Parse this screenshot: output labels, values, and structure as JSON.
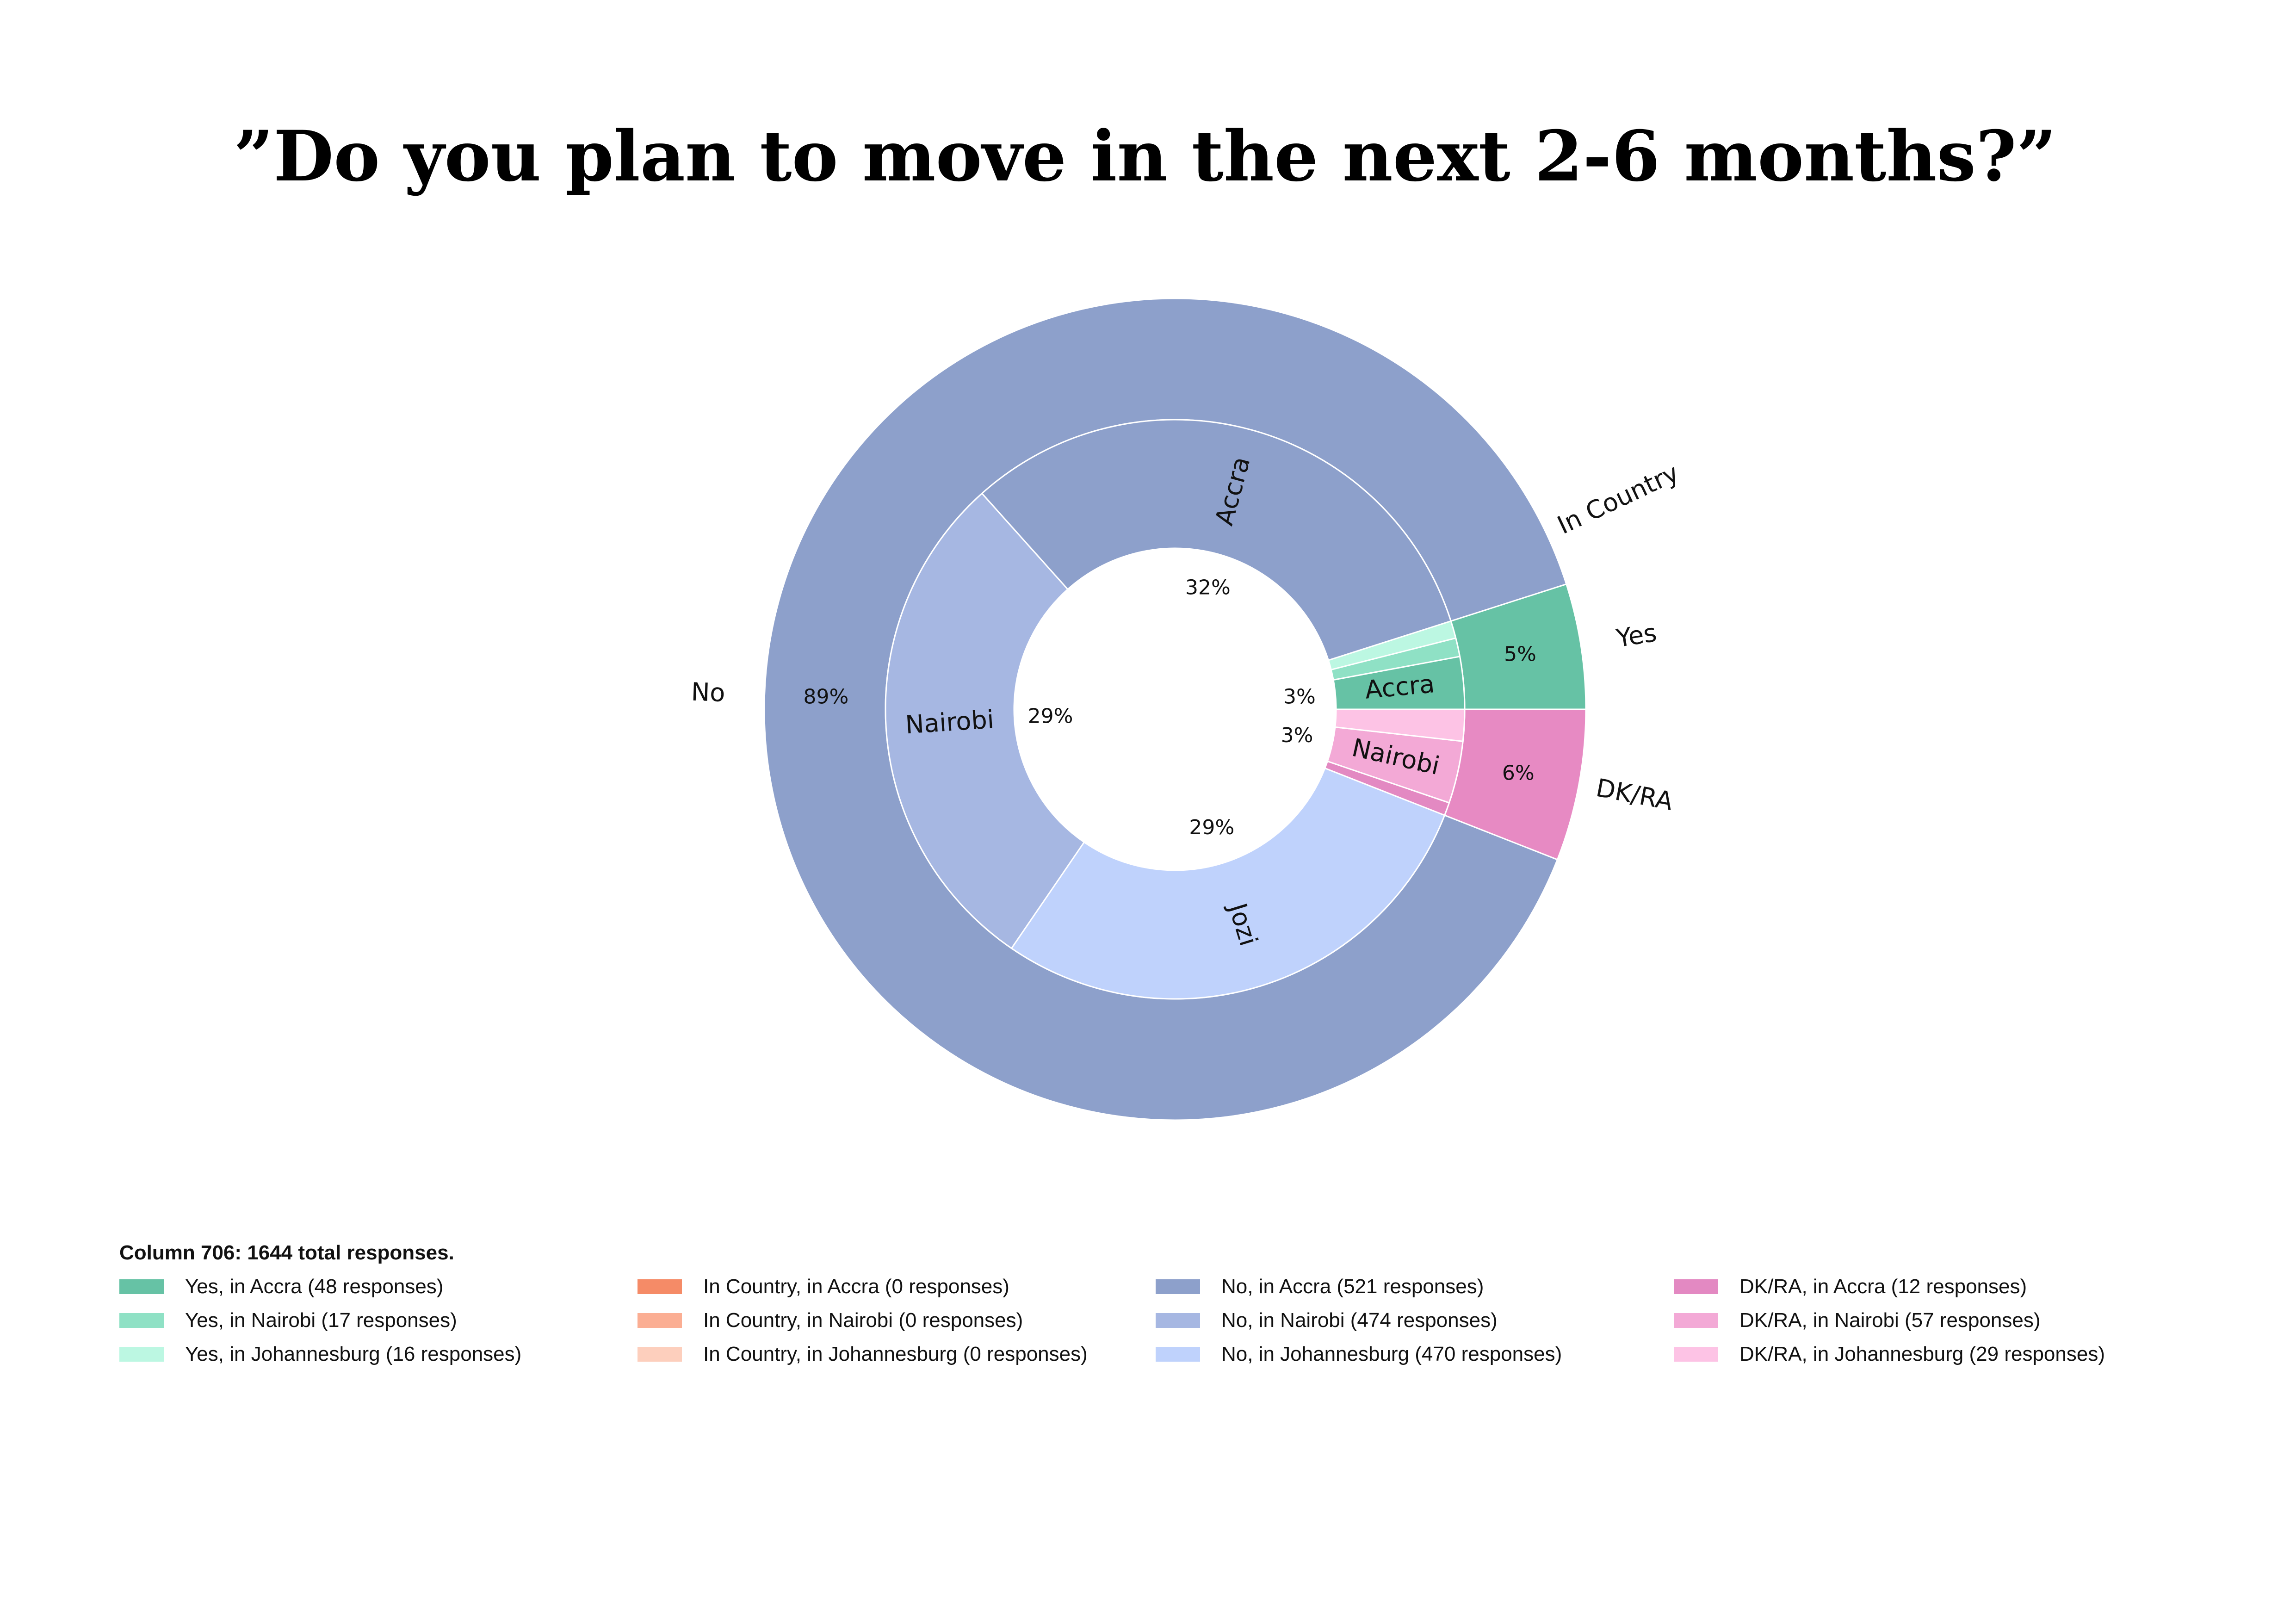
{
  "title": "”Do you plan to move in the next 2-6 months?”",
  "chart_data": {
    "type": "pie",
    "subtype": "nested donut",
    "outer_ring": [
      {
        "name": "Yes",
        "value": 81,
        "pct_label": "5%",
        "color": "#66c2a5"
      },
      {
        "name": "In Country",
        "value": 0,
        "pct_label": "",
        "color": "#fc8d62"
      },
      {
        "name": "No",
        "value": 1465,
        "pct_label": "89%",
        "color": "#8da0cb"
      },
      {
        "name": "DK/RA",
        "value": 98,
        "pct_label": "6%",
        "color": "#e78ac3"
      }
    ],
    "inner_ring": [
      {
        "name": "Yes, in Accra",
        "group": "Yes",
        "value": 48,
        "label": "Accra",
        "pct_label": "3%",
        "color": "#66c2a5"
      },
      {
        "name": "Yes, in Nairobi",
        "group": "Yes",
        "value": 17,
        "label": "",
        "pct_label": "",
        "color": "#8fe1c5"
      },
      {
        "name": "Yes, in Johannesburg",
        "group": "Yes",
        "value": 16,
        "label": "",
        "pct_label": "",
        "color": "#bcf7e2"
      },
      {
        "name": "In Country, in Accra",
        "group": "In Country",
        "value": 0,
        "label": "",
        "pct_label": "",
        "color": "#f58b67"
      },
      {
        "name": "In Country, in Nairobi",
        "group": "In Country",
        "value": 0,
        "label": "",
        "pct_label": "",
        "color": "#fbae93"
      },
      {
        "name": "In Country, in Johannesburg",
        "group": "In Country",
        "value": 0,
        "label": "",
        "pct_label": "",
        "color": "#fdcfbd"
      },
      {
        "name": "No, in Accra",
        "group": "No",
        "value": 521,
        "label": "Accra",
        "pct_label": "32%",
        "color": "#8da0cb"
      },
      {
        "name": "No, in Nairobi",
        "group": "No",
        "value": 474,
        "label": "Nairobi",
        "pct_label": "29%",
        "color": "#a6b7e2"
      },
      {
        "name": "No, in Johannesburg",
        "group": "No",
        "value": 470,
        "label": "Jozi",
        "pct_label": "29%",
        "color": "#bfd2fc"
      },
      {
        "name": "DK/RA, in Accra",
        "group": "DK/RA",
        "value": 12,
        "label": "",
        "pct_label": "",
        "color": "#e389c2"
      },
      {
        "name": "DK/RA, in Nairobi",
        "group": "DK/RA",
        "value": 57,
        "label": "Nairobi",
        "pct_label": "3%",
        "color": "#f3a9d6"
      },
      {
        "name": "DK/RA, in Johannesburg",
        "group": "DK/RA",
        "value": 29,
        "label": "",
        "pct_label": "",
        "color": "#fdc3e5"
      }
    ],
    "start_angle_deg": 0,
    "direction": "counterclockwise"
  },
  "legend": {
    "title": "Column 706: 1644 total responses.",
    "items": [
      {
        "label": "Yes, in Accra (48 responses)",
        "color": "#66c2a5"
      },
      {
        "label": "Yes, in Nairobi (17 responses)",
        "color": "#8fe1c5"
      },
      {
        "label": "Yes, in Johannesburg (16 responses)",
        "color": "#bcf7e2"
      },
      {
        "label": "In Country, in Accra (0 responses)",
        "color": "#f58b67"
      },
      {
        "label": "In Country, in Nairobi (0 responses)",
        "color": "#fbae93"
      },
      {
        "label": "In Country, in Johannesburg (0 responses)",
        "color": "#fdcfbd"
      },
      {
        "label": "No, in Accra (521 responses)",
        "color": "#8da0cb"
      },
      {
        "label": "No, in Nairobi (474 responses)",
        "color": "#a6b7e2"
      },
      {
        "label": "No, in Johannesburg (470 responses)",
        "color": "#bfd2fc"
      },
      {
        "label": "DK/RA, in Accra (12 responses)",
        "color": "#e389c2"
      },
      {
        "label": "DK/RA, in Nairobi (57 responses)",
        "color": "#f3a9d6"
      },
      {
        "label": "DK/RA, in Johannesburg (29 responses)",
        "color": "#fdc3e5"
      }
    ]
  }
}
